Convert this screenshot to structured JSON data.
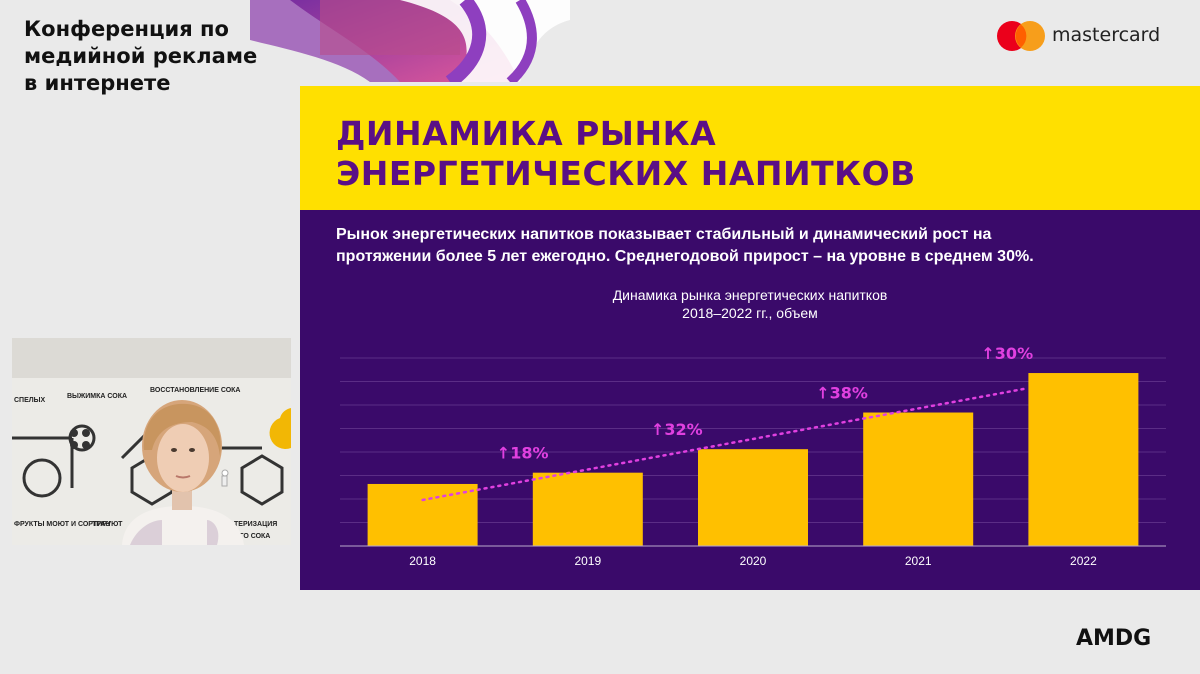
{
  "conference": {
    "title_lines": [
      "Конференция по",
      "медийной рекламе",
      "в интернете"
    ]
  },
  "sponsor": {
    "name": "mastercard",
    "colors": {
      "red": "#eb001b",
      "orange": "#f79e1b"
    }
  },
  "footer": {
    "brand": "AMDG"
  },
  "slide": {
    "title_lines": [
      "ДИНАМИКА РЫНКА",
      "ЭНЕРГЕТИЧЕСКИХ НАПИТКОВ"
    ],
    "description_lines": [
      "Рынок энергетических напитков показывает стабильный и динамический рост на",
      "протяжении более 5 лет ежегодно. Среднегодовой прирост – на уровне в среднем 30%."
    ],
    "colors": {
      "header_bg": "#ffe000",
      "body_bg": "#3a0a6a",
      "title": "#5a0f86",
      "bar": "#ffc000",
      "annotation": "#e040e0"
    }
  },
  "video": {
    "wall_labels": [
      "СПЕЛЫХ",
      "ВЫЖИМКА СОКА",
      "ВОССТАНОВЛЕНИЕ СОКА",
      "ФРУКТЫ МОЮТ И СОРТИРУЮТ",
      "ТРАН",
      "ТЕРИЗАЦИЯ",
      "ОГО СОКА"
    ],
    "icons": [
      "person-icon"
    ]
  },
  "chart_data": {
    "type": "bar",
    "title": "Динамика рынка энергетических напитков",
    "subtitle": "2018–2022 гг., объем",
    "categories": [
      "2018",
      "2019",
      "2020",
      "2021",
      "2022"
    ],
    "values": [
      66,
      78,
      103,
      142,
      184
    ],
    "ylim": [
      0,
      200
    ],
    "growth_labels": [
      "",
      "↑18%",
      "↑32%",
      "↑38%",
      "↑30%"
    ],
    "trendline": "dotted",
    "grid": true,
    "legend": "none",
    "xlabel": "",
    "ylabel": ""
  }
}
